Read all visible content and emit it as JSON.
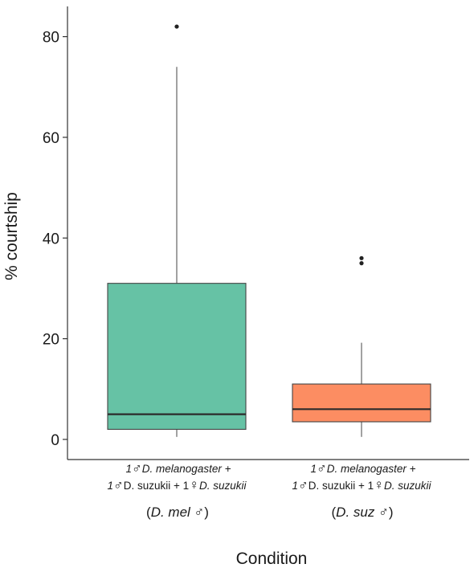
{
  "chart_data": {
    "type": "boxplot",
    "xlabel": "Condition",
    "ylabel": "% courtship",
    "ylim": [
      -4,
      86
    ],
    "yticks": [
      0,
      20,
      40,
      60,
      80
    ],
    "grid": false,
    "categories": [
      {
        "line1": "1♂D. melanogaster +",
        "line1_parts": [
          "1",
          "♂",
          "D. melanogaster +"
        ],
        "line2_parts": [
          "1",
          "♂",
          "D. suzukii + 1",
          "♀",
          "D. suzukii"
        ],
        "group_parts": [
          "(",
          "D. mel",
          " ♂)"
        ],
        "color": "#66C2A5",
        "min": 0.5,
        "q1": 2,
        "median": 5,
        "q3": 31,
        "max": 74,
        "outliers": [
          82
        ]
      },
      {
        "line1_parts": [
          "1",
          "♂",
          "D. melanogaster +"
        ],
        "line2_parts": [
          "1",
          "♂",
          "D. suzukii + 1",
          "♀",
          "D. suzukii"
        ],
        "group_parts": [
          "(",
          "D. suz",
          " ♂)"
        ],
        "color": "#FC8D62",
        "min": 0.5,
        "q1": 3.5,
        "median": 6,
        "q3": 11,
        "max": 19.2,
        "outliers": [
          35,
          36
        ]
      }
    ]
  }
}
